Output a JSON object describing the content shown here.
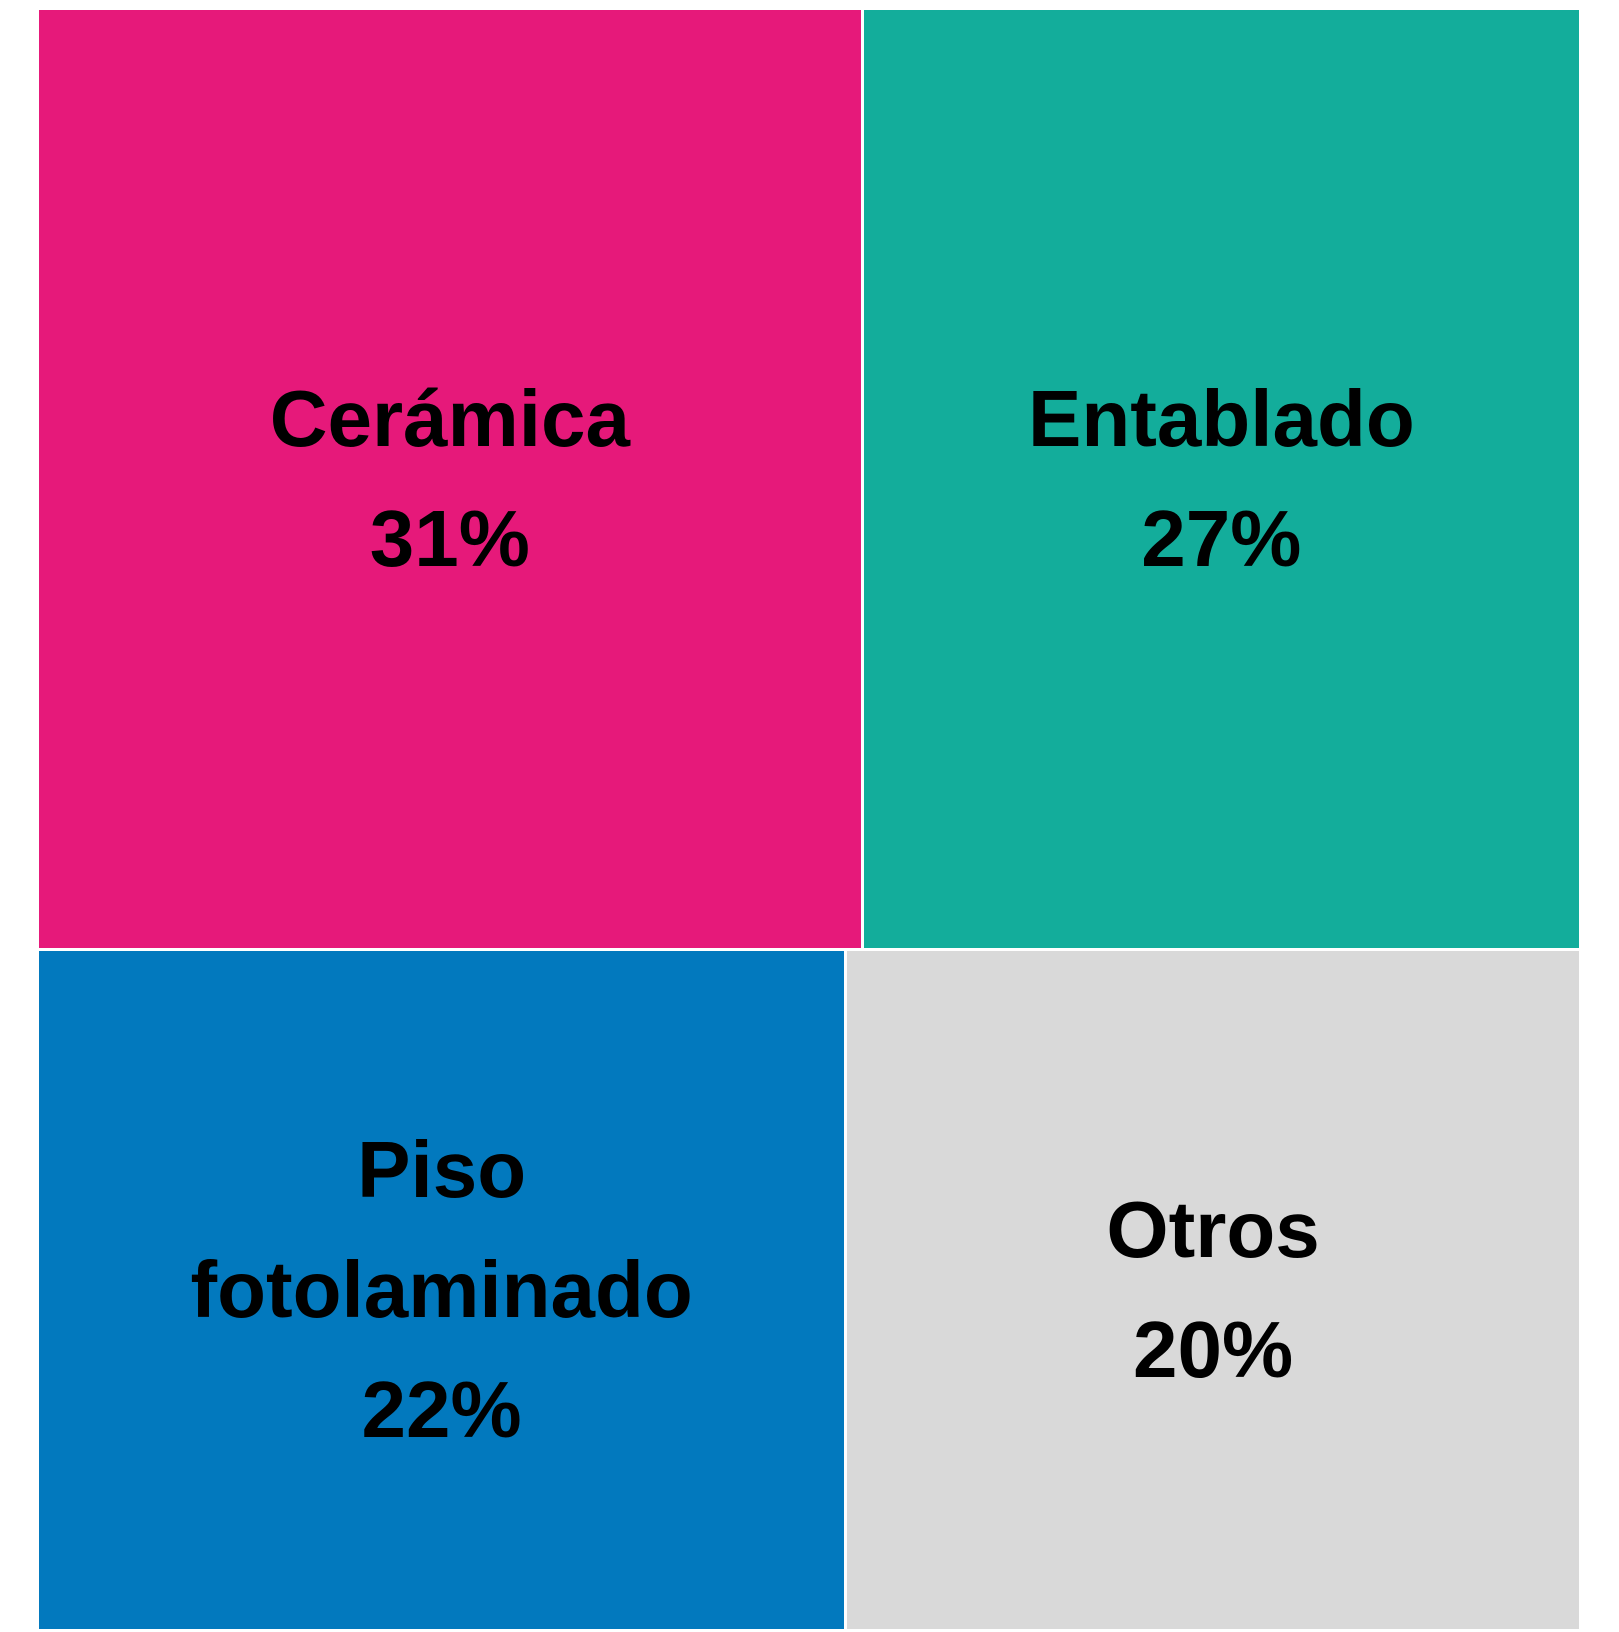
{
  "chart_data": {
    "type": "treemap",
    "categories": [
      "Cerámica",
      "Entablado",
      "Piso fotolaminado",
      "Otros"
    ],
    "values": [
      31,
      27,
      22,
      20
    ],
    "value_labels": [
      "31%",
      "27%",
      "22%",
      "20%"
    ],
    "colors": [
      "#e6197a",
      "#13ad9b",
      "#0279be",
      "#d9d9d9"
    ]
  }
}
